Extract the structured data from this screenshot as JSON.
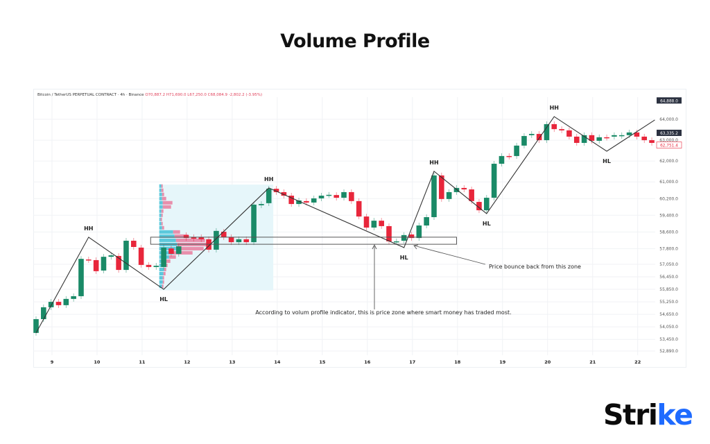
{
  "title": "Volume Profile",
  "logo": {
    "text": "Strike",
    "accent_color": "#1f6bff"
  },
  "header": {
    "symbol": "Bitcoin / TetherUS PERPETUAL CONTRACT · 4h · Binance",
    "open": "O70,887.2",
    "high": "H71,690.0",
    "low": "L67,250.0",
    "close": "C68,084.9",
    "change": "-2,802.2 (-3.95%)"
  },
  "chart_data": {
    "type": "candlestick",
    "interval": "4h",
    "colors": {
      "up": "#1a8a67",
      "down": "#e8263b",
      "zigzag": "#333333",
      "profile_up": "#5cc9dc",
      "profile_down": "#e77d9e",
      "profile_area": "#e6f6fa"
    },
    "x_ticks": [
      "9",
      "10",
      "11",
      "12",
      "13",
      "14",
      "15",
      "16",
      "17",
      "18",
      "19",
      "20",
      "21",
      "22"
    ],
    "y_ticks": [
      "64,000.0",
      "63,000.0",
      "62,000.0",
      "61,000.0",
      "60,200.0",
      "59,400.0",
      "58,600.0",
      "57,800.0",
      "57,050.0",
      "56,450.0",
      "55,850.0",
      "55,250.0",
      "54,650.0",
      "54,050.0",
      "53,450.0",
      "52,890.0"
    ],
    "price_badges": [
      {
        "label": "64,888.0",
        "value": 64888,
        "style": "dark"
      },
      {
        "label": "63,335.2",
        "value": 63335.2,
        "style": "dark"
      },
      {
        "label": "62,751.4",
        "value": 62751.4,
        "style": "red"
      }
    ],
    "grid": true,
    "candles_oc": [
      [
        53760,
        54420
      ],
      [
        54420,
        54990
      ],
      [
        54990,
        55250
      ],
      [
        55250,
        55090
      ],
      [
        55090,
        55390
      ],
      [
        55390,
        55520
      ],
      [
        55520,
        57310
      ],
      [
        57280,
        57250
      ],
      [
        57250,
        56720
      ],
      [
        56750,
        57410
      ],
      [
        57410,
        57480
      ],
      [
        57450,
        56780
      ],
      [
        56780,
        58180
      ],
      [
        58180,
        57880
      ],
      [
        57850,
        57020
      ],
      [
        57020,
        56920
      ],
      [
        56920,
        56980
      ],
      [
        56920,
        57850
      ],
      [
        57810,
        57550
      ],
      [
        57550,
        57910
      ],
      [
        58450,
        58310
      ],
      [
        58350,
        58280
      ],
      [
        58350,
        58250
      ],
      [
        58250,
        57750
      ],
      [
        57750,
        58650
      ],
      [
        58610,
        58350
      ],
      [
        58350,
        58110
      ],
      [
        58110,
        58250
      ],
      [
        58250,
        58110
      ],
      [
        58110,
        59910
      ],
      [
        59880,
        59940
      ],
      [
        59980,
        60670
      ],
      [
        60670,
        60510
      ],
      [
        60510,
        60340
      ],
      [
        60340,
        59940
      ],
      [
        59940,
        60110
      ],
      [
        60080,
        60010
      ],
      [
        60010,
        60210
      ],
      [
        60210,
        60340
      ],
      [
        60370,
        60380
      ],
      [
        60370,
        60240
      ],
      [
        60240,
        60510
      ],
      [
        60510,
        60080
      ],
      [
        60080,
        59340
      ],
      [
        59340,
        58810
      ],
      [
        58810,
        59140
      ],
      [
        59140,
        58880
      ],
      [
        58880,
        58150
      ],
      [
        58110,
        58150
      ],
      [
        58180,
        58450
      ],
      [
        58480,
        58310
      ],
      [
        58310,
        58910
      ],
      [
        58910,
        59310
      ],
      [
        59310,
        61310
      ],
      [
        61310,
        60180
      ],
      [
        60180,
        60510
      ],
      [
        60510,
        60710
      ],
      [
        60710,
        60640
      ],
      [
        60640,
        60080
      ],
      [
        60040,
        59640
      ],
      [
        59640,
        60240
      ],
      [
        60240,
        61870
      ],
      [
        61870,
        62240
      ],
      [
        62240,
        62210
      ],
      [
        62240,
        62740
      ],
      [
        62740,
        63200
      ],
      [
        63240,
        63300
      ],
      [
        63300,
        63000
      ],
      [
        63000,
        63770
      ],
      [
        63770,
        63530
      ],
      [
        63530,
        63470
      ],
      [
        63470,
        63170
      ],
      [
        63170,
        62870
      ],
      [
        62870,
        63240
      ],
      [
        63240,
        62970
      ],
      [
        62970,
        63140
      ],
      [
        63140,
        63120
      ],
      [
        63170,
        63240
      ],
      [
        63200,
        63240
      ],
      [
        63240,
        63370
      ],
      [
        63370,
        63170
      ],
      [
        63170,
        63000
      ],
      [
        63000,
        62870
      ]
    ],
    "zigzag": [
      {
        "candle": 0,
        "price": 53760
      },
      {
        "candle": 7,
        "price": 58350,
        "label": "HH"
      },
      {
        "candle": 17,
        "price": 55850,
        "label": "HL"
      },
      {
        "candle": 31,
        "price": 60710,
        "label": "HH"
      },
      {
        "candle": 49,
        "price": 57850,
        "label": "HL"
      },
      {
        "candle": 53,
        "price": 61510,
        "label": "HH"
      },
      {
        "candle": 60,
        "price": 59480,
        "label": "HL"
      },
      {
        "candle": 69,
        "price": 64130,
        "label": "HH"
      },
      {
        "candle": 76,
        "price": 62470,
        "label": "HL"
      },
      {
        "candle": 82.4,
        "price": 63970
      }
    ],
    "volume_profile": {
      "from_candle": 16.5,
      "to_candle": 31.5,
      "rows": [
        [
          60800,
          3,
          2
        ],
        [
          60600,
          3,
          3
        ],
        [
          60400,
          4,
          3
        ],
        [
          60200,
          4,
          6
        ],
        [
          60000,
          5,
          14
        ],
        [
          59800,
          5,
          12
        ],
        [
          59600,
          3,
          3
        ],
        [
          59400,
          3,
          2
        ],
        [
          59200,
          2,
          2
        ],
        [
          59000,
          3,
          2
        ],
        [
          58800,
          4,
          3
        ],
        [
          58600,
          20,
          10
        ],
        [
          58400,
          22,
          20
        ],
        [
          58200,
          24,
          42
        ],
        [
          58000,
          26,
          46
        ],
        [
          57800,
          24,
          40
        ],
        [
          57600,
          20,
          28
        ],
        [
          57400,
          14,
          10
        ],
        [
          57200,
          10,
          6
        ],
        [
          57000,
          8,
          4
        ],
        [
          56800,
          7,
          3
        ],
        [
          56600,
          6,
          3
        ],
        [
          56400,
          5,
          2
        ],
        [
          56200,
          5,
          2
        ],
        [
          56000,
          4,
          2
        ]
      ]
    },
    "zone": {
      "high": 58350,
      "low": 58010,
      "from_candle": 16,
      "to_candle": 56
    },
    "annotations": [
      {
        "text": "According to volum profile indicator, this is price zone where smart money has traded most."
      },
      {
        "text": "Price bounce back from this zone"
      }
    ]
  }
}
